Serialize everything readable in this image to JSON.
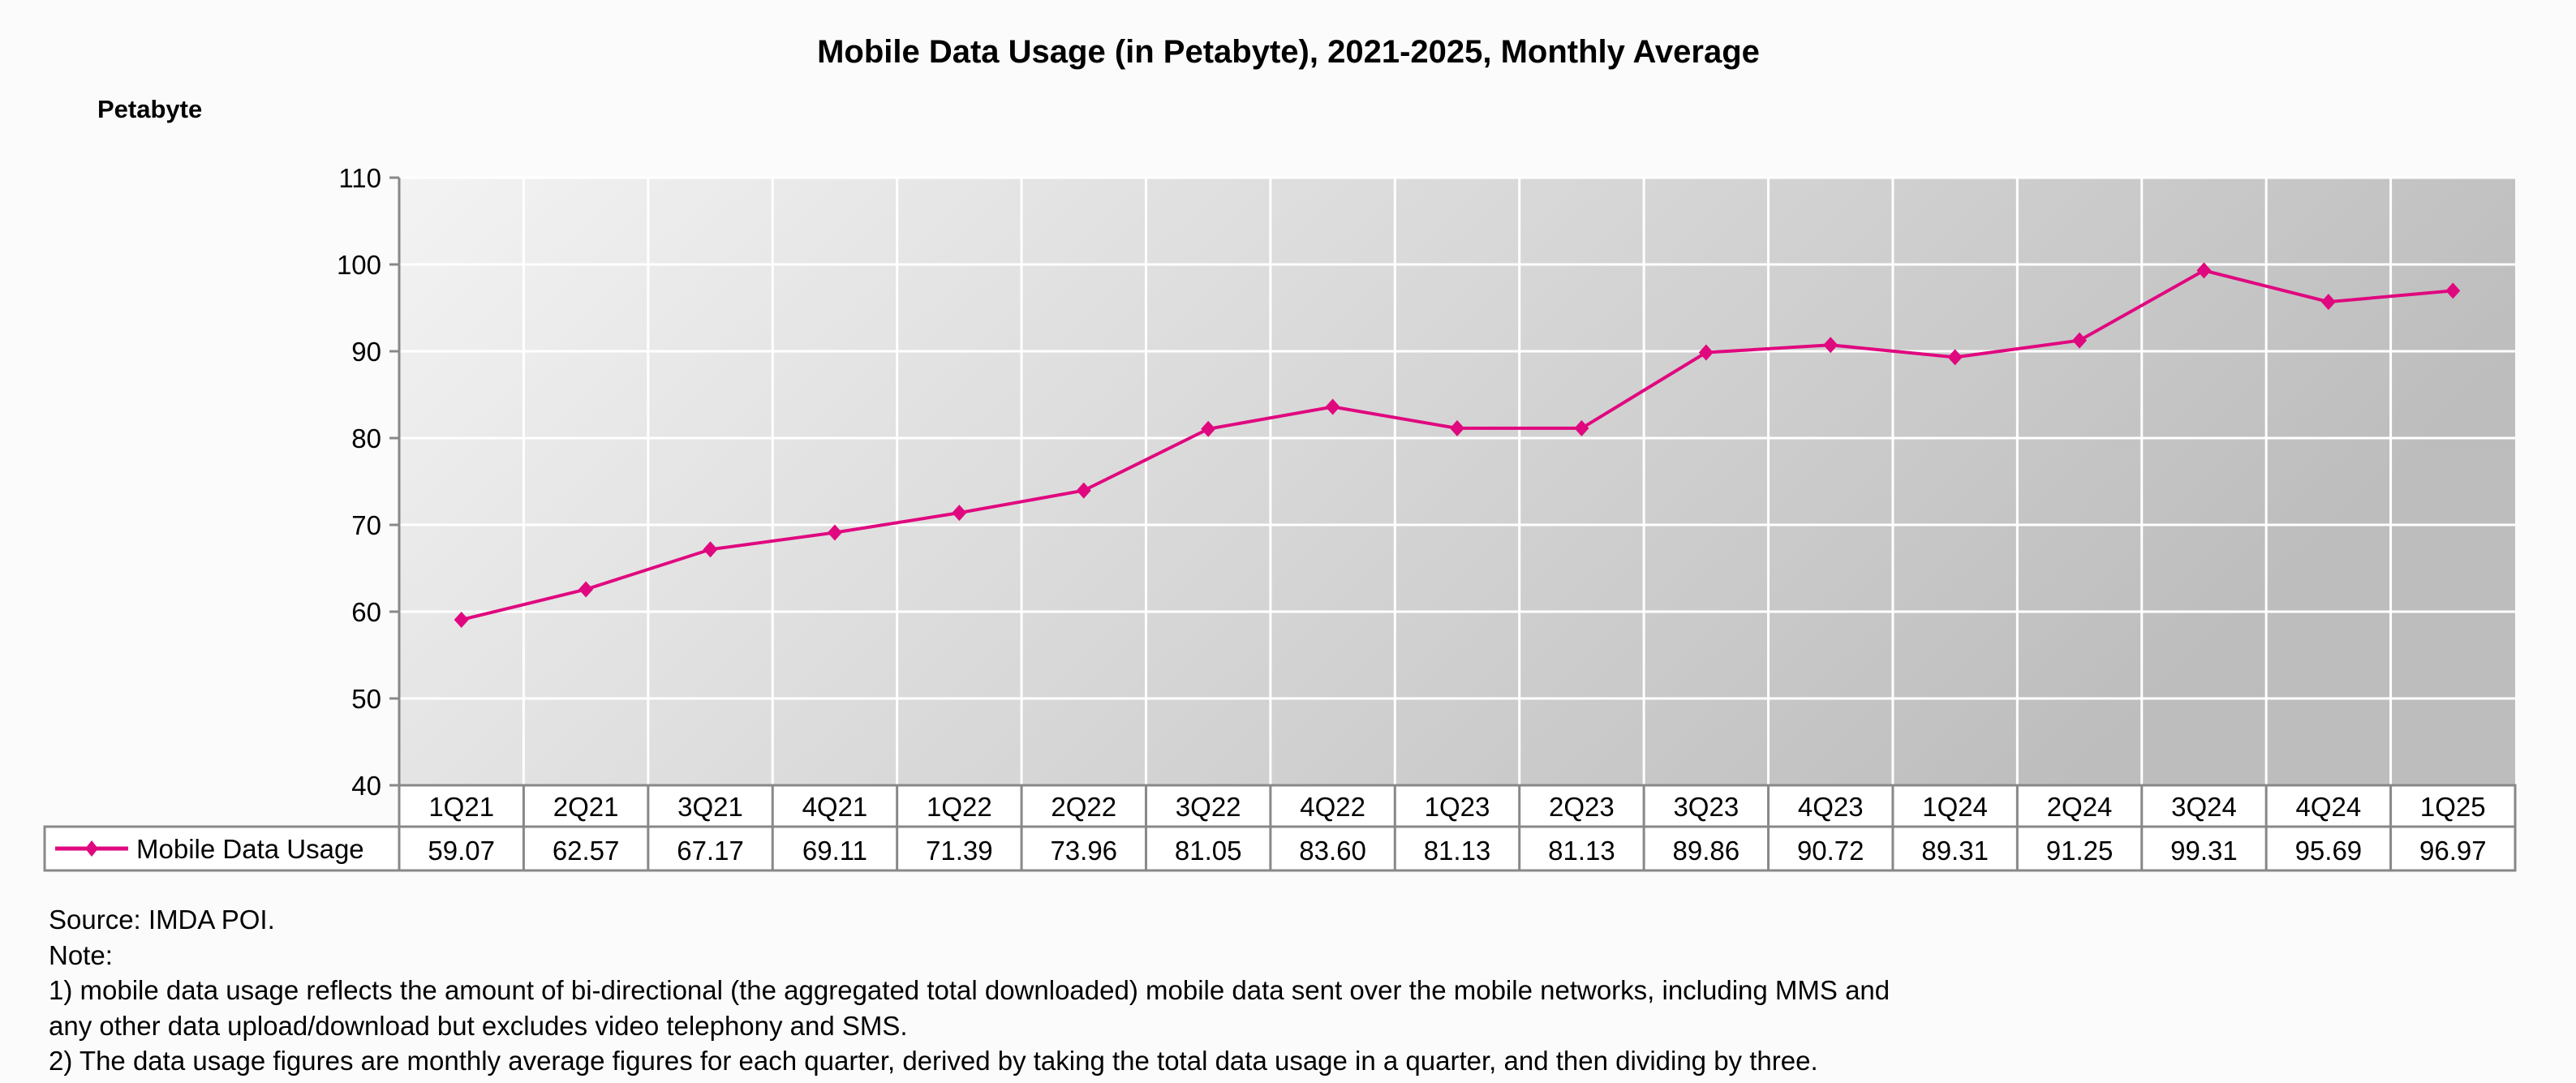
{
  "chart_data": {
    "type": "line",
    "title": "Mobile Data Usage (in Petabyte), 2021-2025, Monthly Average",
    "ylabel": "Petabyte",
    "xlabel": "",
    "ylim": [
      40,
      110
    ],
    "yticks": [
      40,
      50,
      60,
      70,
      80,
      90,
      100,
      110
    ],
    "grid": true,
    "legend": "data-table-left",
    "categories": [
      "1Q21",
      "2Q21",
      "3Q21",
      "4Q21",
      "1Q22",
      "2Q22",
      "3Q22",
      "4Q22",
      "1Q23",
      "2Q23",
      "3Q23",
      "4Q23",
      "1Q24",
      "2Q24",
      "3Q24",
      "4Q24",
      "1Q25"
    ],
    "series": [
      {
        "name": "Mobile Data Usage",
        "color": "#e0087f",
        "values": [
          59.07,
          62.57,
          67.17,
          69.11,
          71.39,
          73.96,
          81.05,
          83.6,
          81.13,
          81.13,
          89.86,
          90.72,
          89.31,
          91.25,
          99.31,
          95.69,
          96.97
        ],
        "labels": [
          "59.07",
          "62.57",
          "67.17",
          "69.11",
          "71.39",
          "73.96",
          "81.05",
          "83.60",
          "81.13",
          "81.13",
          "89.86",
          "90.72",
          "89.31",
          "91.25",
          "99.31",
          "95.69",
          "96.97"
        ]
      }
    ]
  },
  "notes": {
    "source": "Source: IMDA POI.",
    "note_heading": "Note:",
    "note1_line1": "1)  mobile data usage reflects the amount of bi-directional (the aggregated total downloaded) mobile data sent over the mobile networks, including MMS and",
    "note1_line2": "any other data upload/download but excludes video telephony and SMS.",
    "note2": "2)  The data usage figures are monthly average figures for each quarter, derived by taking the total data usage in a quarter, and then dividing by three."
  }
}
